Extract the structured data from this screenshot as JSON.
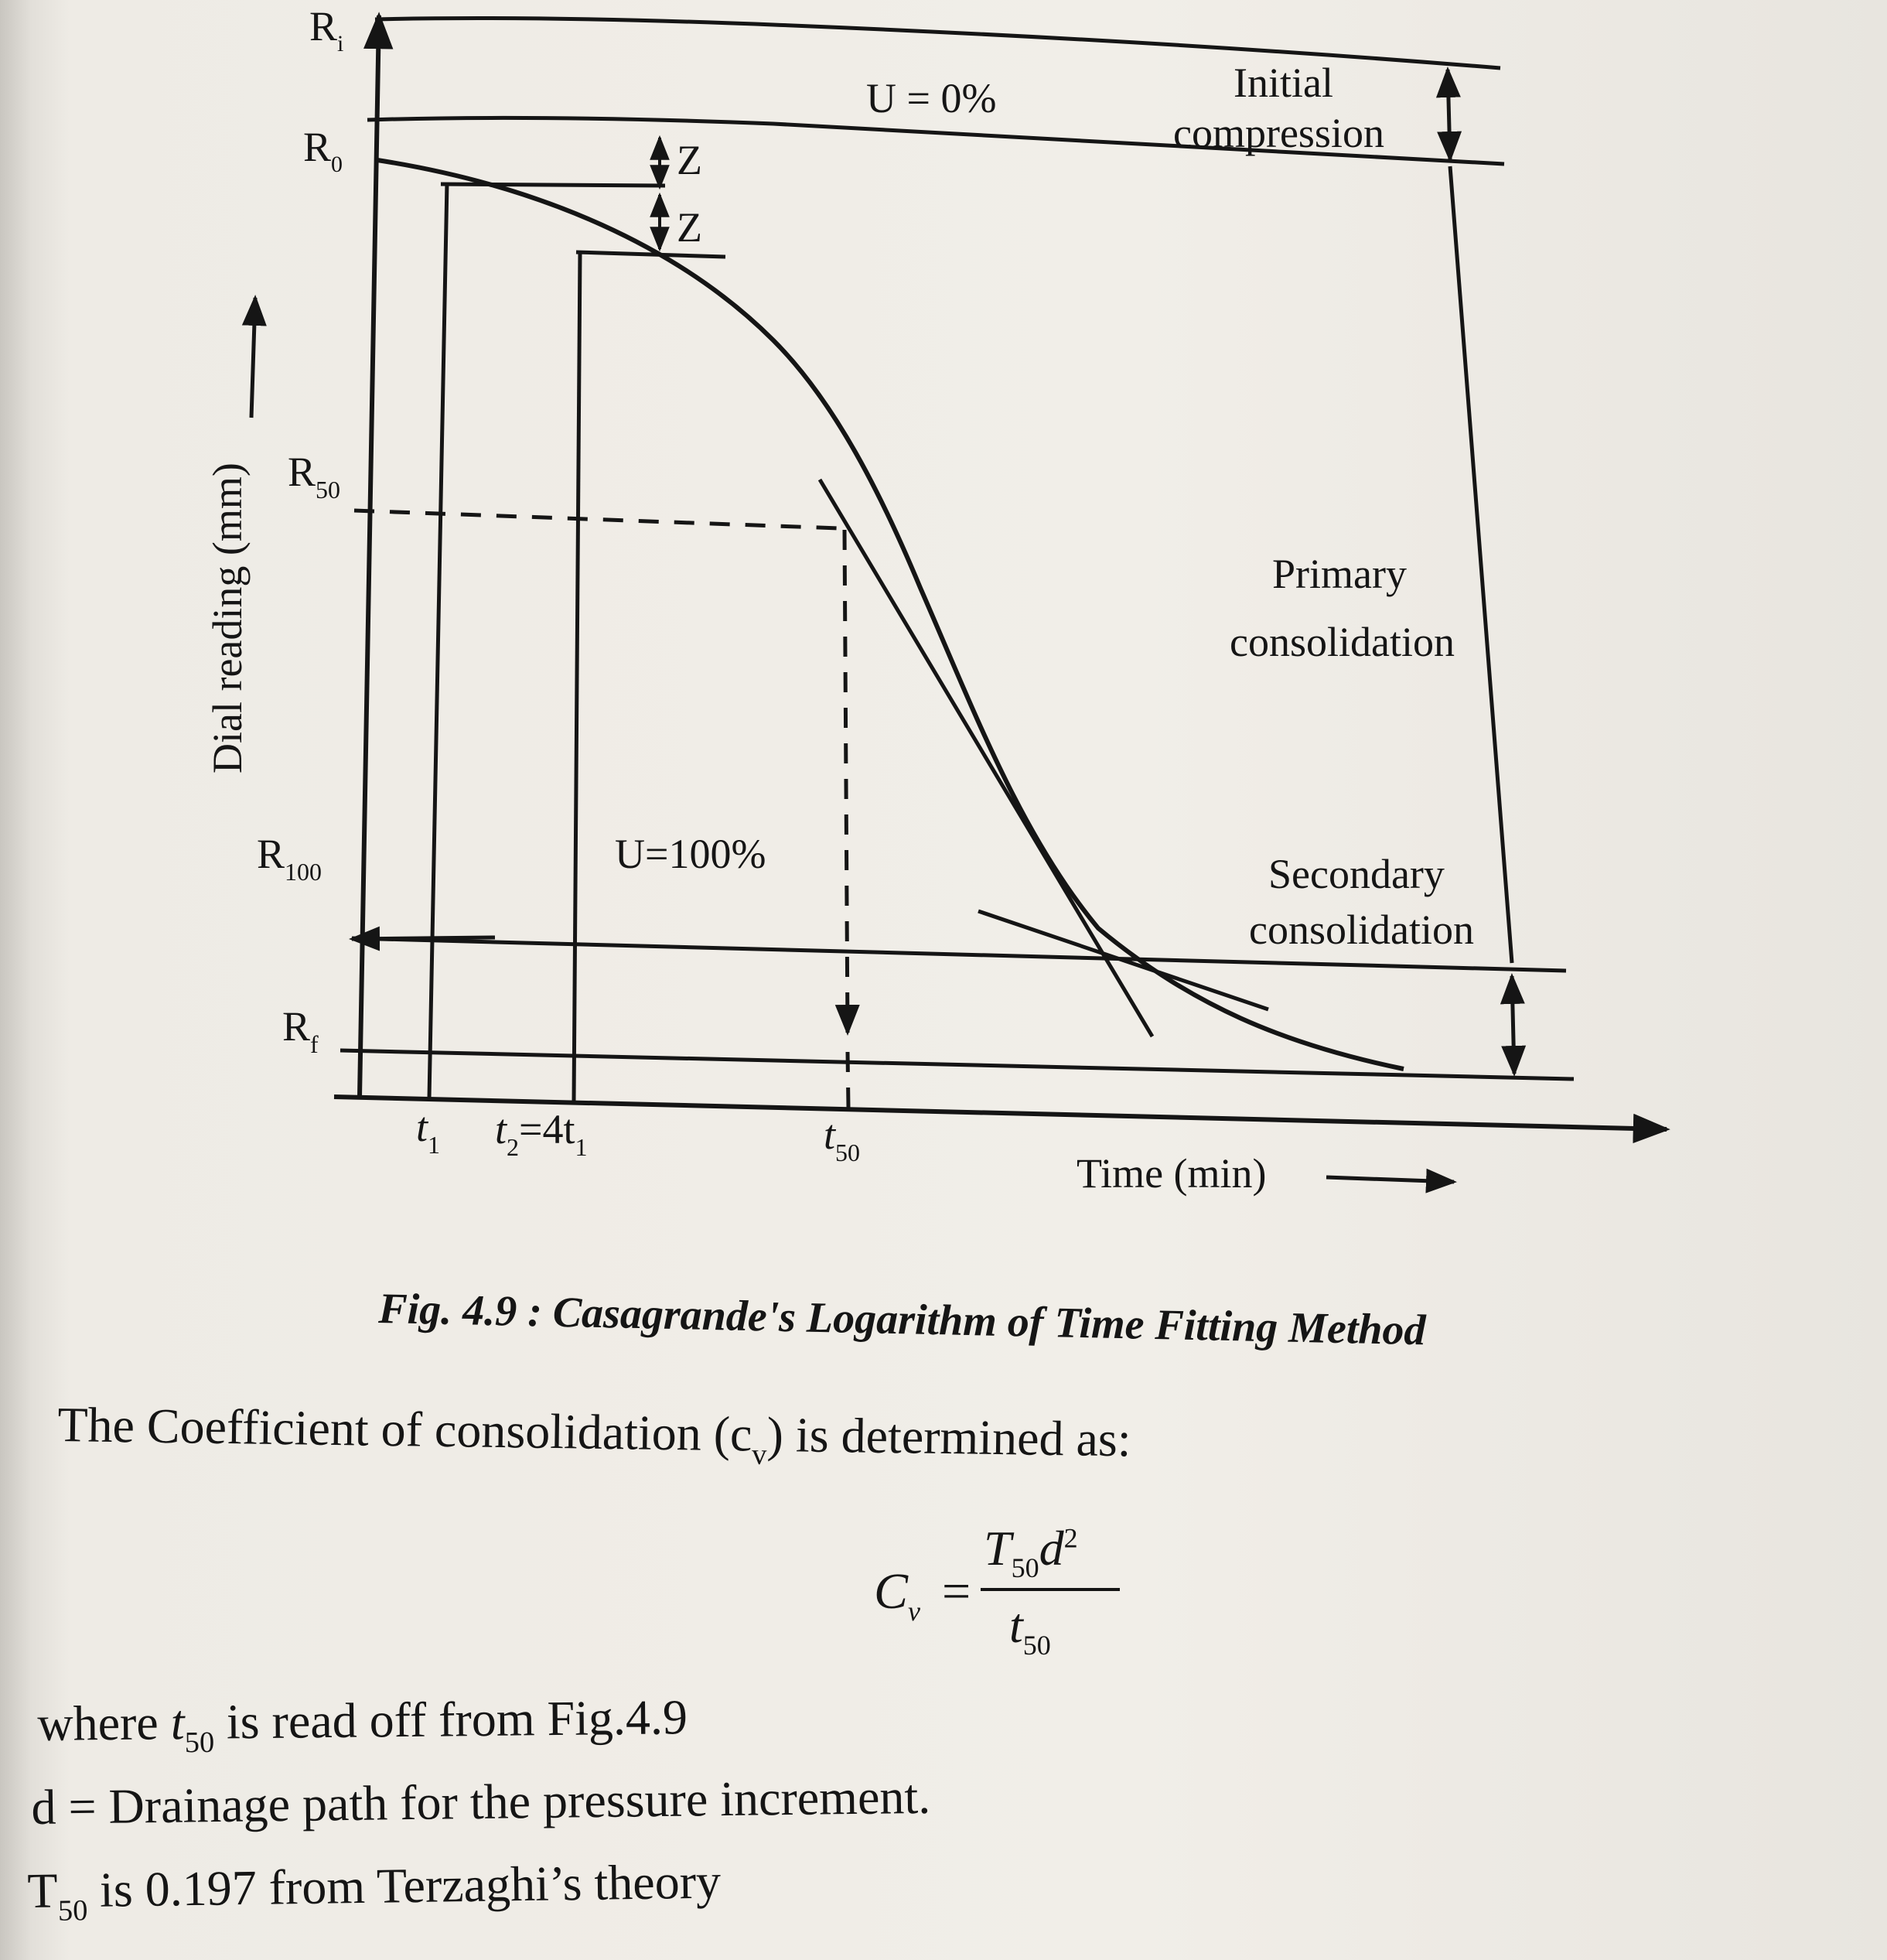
{
  "figure": {
    "labels": {
      "ri": "R",
      "ri_sub": "i",
      "r0": "R",
      "r0_sub": "0",
      "r50": "R",
      "r50_sub": "50",
      "r100": "R",
      "r100_sub": "100",
      "rf": "R",
      "rf_sub": "f",
      "u0": "U = 0%",
      "u100": "U=100%",
      "z1": "Z",
      "z2": "Z",
      "initial_1": "Initial",
      "initial_2": "compression",
      "primary_1": "Primary",
      "primary_2": "consolidation",
      "secondary_1": "Secondary",
      "secondary_2": "consolidation",
      "t1": "t",
      "t1_sub": "1",
      "t2": "t",
      "t2_sub": "2",
      "t2_eq": "=4t",
      "t2_eq_sub": "1",
      "t50": "t",
      "t50_sub": "50",
      "xlabel": "Time (min)",
      "ylabel": "Dial reading (mm)"
    }
  },
  "caption": "Fig. 4.9 : Casagrande's Logarithm of Time Fitting Method",
  "text": {
    "intro_a": "The Coefficient of consolidation (c",
    "intro_sub": "v",
    "intro_b": ") is determined as:",
    "formula_lhs": "C",
    "formula_lhs_sub": "v",
    "formula_eq": "=",
    "formula_num_a": "T",
    "formula_num_sub": "50",
    "formula_num_b": "d",
    "formula_num_sup": "2",
    "formula_den": "t",
    "formula_den_sub": "50",
    "where_a": "where ",
    "where_t": "t",
    "where_sub": "50",
    "where_b": " is read off from Fig.4.9",
    "d_line": "d = Drainage path for the pressure increment.",
    "t50_a": "T",
    "t50_sub": "50",
    "t50_b": " is 0.197 from Terzaghi’s theory"
  }
}
